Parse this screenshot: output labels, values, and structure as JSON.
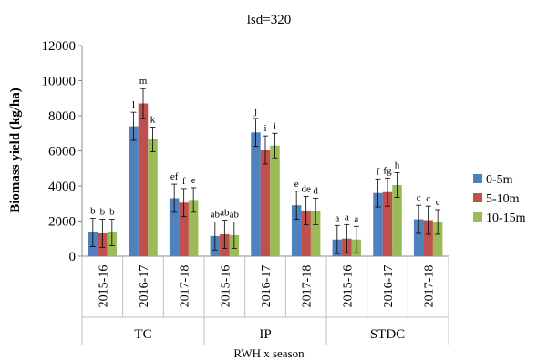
{
  "chart_data": {
    "type": "bar",
    "title": "lsd=320",
    "ylabel": "Biomass yield (kg/ha)",
    "xlabel": "RWH x season",
    "ylim": [
      0,
      12000
    ],
    "yticks": [
      "0",
      "2000",
      "4000",
      "6000",
      "8000",
      "10000",
      "12000"
    ],
    "groups": [
      "TC",
      "IP",
      "STDC"
    ],
    "seasons": [
      "2015-16",
      "2016-17",
      "2017-18"
    ],
    "series": [
      {
        "name": "0-5m",
        "color": "#4f81bd",
        "values": [
          1350,
          7400,
          3300,
          1150,
          7050,
          2900,
          950,
          3600,
          2100
        ],
        "errors": [
          800,
          800,
          800,
          800,
          800,
          800,
          800,
          800,
          800
        ],
        "labels": [
          "b",
          "l",
          "ef",
          "ab",
          "j",
          "e",
          "a",
          "f",
          "c"
        ]
      },
      {
        "name": "5-10m",
        "color": "#c0504d",
        "values": [
          1300,
          8700,
          3050,
          1250,
          6050,
          2600,
          1000,
          3650,
          2050
        ],
        "errors": [
          800,
          850,
          800,
          800,
          800,
          800,
          800,
          800,
          800
        ],
        "labels": [
          "b",
          "m",
          "f",
          "ab",
          "i",
          "de",
          "a",
          "fg",
          "c"
        ]
      },
      {
        "name": "10-15m",
        "color": "#9bbb59",
        "values": [
          1350,
          6650,
          3200,
          1200,
          6300,
          2550,
          950,
          4050,
          1950
        ],
        "errors": [
          750,
          700,
          700,
          750,
          700,
          750,
          750,
          700,
          700
        ],
        "labels": [
          "b",
          "k",
          "e",
          "ab",
          "i",
          "d",
          "a",
          "h",
          "c"
        ]
      }
    ],
    "legend": "right",
    "grid": false
  }
}
